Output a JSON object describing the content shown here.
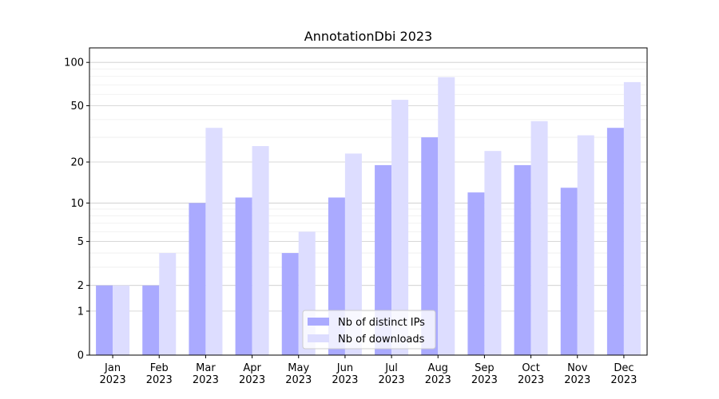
{
  "chart_data": {
    "type": "bar",
    "title": "AnnotationDbi 2023",
    "categories": [
      [
        "Jan",
        "2023"
      ],
      [
        "Feb",
        "2023"
      ],
      [
        "Mar",
        "2023"
      ],
      [
        "Apr",
        "2023"
      ],
      [
        "May",
        "2023"
      ],
      [
        "Jun",
        "2023"
      ],
      [
        "Jul",
        "2023"
      ],
      [
        "Aug",
        "2023"
      ],
      [
        "Sep",
        "2023"
      ],
      [
        "Oct",
        "2023"
      ],
      [
        "Nov",
        "2023"
      ],
      [
        "Dec",
        "2023"
      ]
    ],
    "series": [
      {
        "name": "Nb of distinct IPs",
        "color": "#aaaaff",
        "values": [
          2,
          2,
          10,
          11,
          4,
          11,
          19,
          30,
          12,
          19,
          13,
          35
        ]
      },
      {
        "name": "Nb of downloads",
        "color": "#ddddff",
        "values": [
          2,
          4,
          35,
          26,
          6,
          23,
          55,
          79,
          24,
          39,
          31,
          73
        ]
      }
    ],
    "yscale": "log1p",
    "ylim": [
      0,
      126
    ],
    "yticks": [
      0,
      1,
      2,
      5,
      10,
      20,
      50,
      100
    ],
    "minor_yticks": [
      3,
      4,
      6,
      7,
      8,
      9,
      30,
      40,
      60,
      70,
      80,
      90
    ],
    "grid": true,
    "legend": "lower center"
  }
}
